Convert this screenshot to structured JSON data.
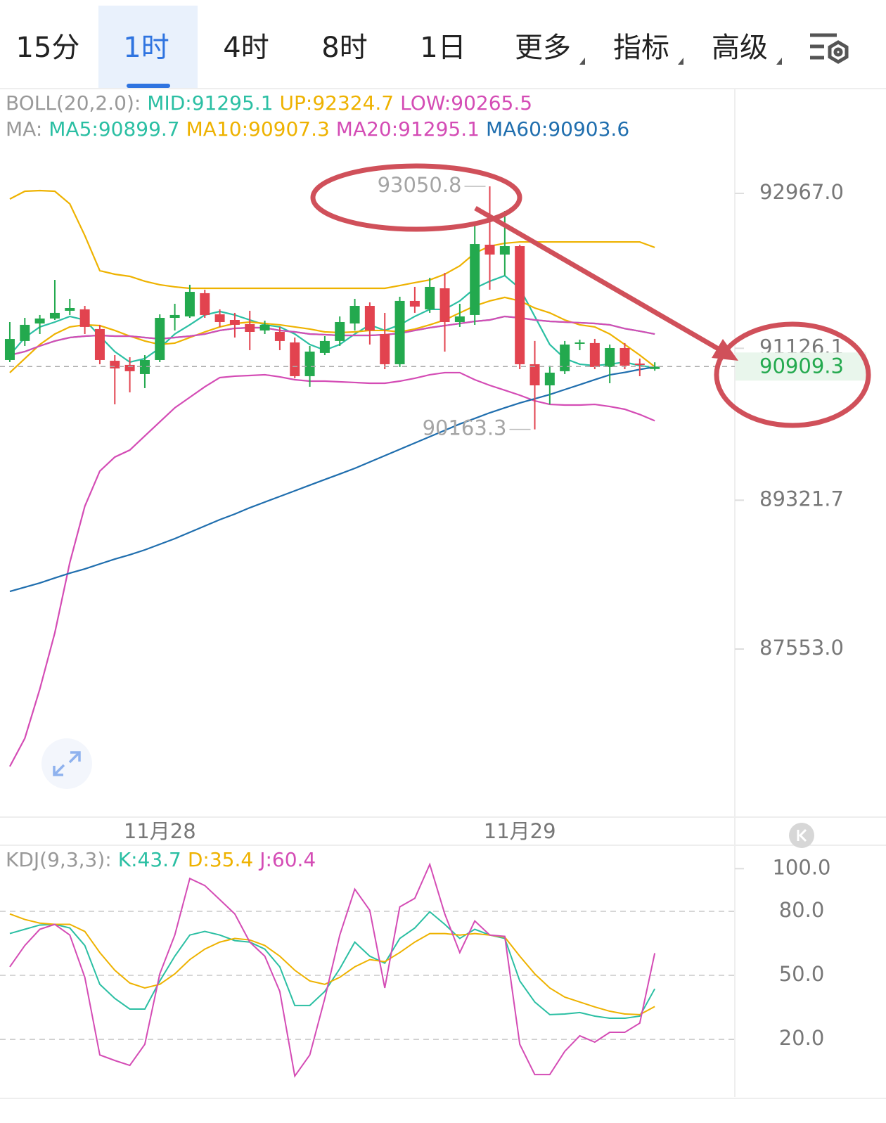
{
  "tabs": {
    "items": [
      "15分",
      "1时",
      "4时",
      "8时",
      "1日",
      "更多",
      "指标",
      "高级"
    ],
    "active": 1
  },
  "chart_data": [
    {
      "type": "candlestick",
      "categories": [
        null,
        null,
        null,
        null,
        null,
        null,
        null,
        null,
        null,
        null,
        "11月28",
        null,
        null,
        null,
        null,
        null,
        null,
        null,
        null,
        null,
        null,
        null,
        null,
        null,
        null,
        null,
        null,
        null,
        null,
        null,
        null,
        null,
        null,
        null,
        "11月29",
        null,
        null,
        null,
        null,
        null,
        null,
        null,
        null,
        null
      ],
      "open": [
        90987,
        91213,
        91421,
        91480,
        91572,
        91589,
        91355,
        90978,
        90929,
        90820,
        90987,
        91488,
        91505,
        91781,
        91530,
        91463,
        91413,
        91338,
        91321,
        91196,
        90795,
        91071,
        91213,
        91421,
        91630,
        91296,
        90937,
        91689,
        91589,
        91839,
        91438,
        91522,
        92357,
        92240,
        92340,
        90937,
        90686,
        90854,
        91188,
        91188,
        90904,
        91129,
        90945,
        90880
      ],
      "high": [
        91438,
        91488,
        91522,
        91939,
        91714,
        91630,
        91405,
        91045,
        91020,
        91045,
        91530,
        91655,
        91881,
        91822,
        91589,
        91547,
        91572,
        91455,
        91380,
        91254,
        91154,
        91271,
        91505,
        91714,
        91672,
        91547,
        91739,
        91856,
        91964,
        92023,
        91655,
        92633,
        93050.8,
        92758,
        92357,
        91213,
        90920,
        91213,
        91229,
        91238,
        91171,
        91188,
        91004,
        90960
      ],
      "low": [
        90962,
        91154,
        91296,
        91463,
        91522,
        91296,
        90937,
        90460,
        90603,
        90653,
        90962,
        91338,
        91488,
        91488,
        91380,
        91254,
        91104,
        91296,
        91104,
        90770,
        90669,
        91045,
        91154,
        91338,
        91171,
        90878,
        90904,
        91547,
        91547,
        91087,
        91380,
        91405,
        91822,
        91990,
        90878,
        90163.3,
        90460,
        90820,
        91104,
        90878,
        90711,
        90878,
        90795,
        90860
      ],
      "close": [
        91237,
        91405,
        91480,
        91547,
        91605,
        91380,
        90987,
        90887,
        90854,
        90987,
        91488,
        91522,
        91797,
        91522,
        91438,
        91405,
        91321,
        91405,
        91213,
        90795,
        91087,
        91213,
        91438,
        91630,
        91338,
        90937,
        91689,
        91622,
        91856,
        91438,
        91505,
        92365,
        92240,
        92340,
        90937,
        90686,
        90837,
        91171,
        91196,
        90904,
        91129,
        90920,
        90929,
        90909.3
      ],
      "up_color": "#23a94e",
      "down_color": "#e2434f",
      "overlay_groups": [
        {
          "label": "BOLL(20,2.0):",
          "series": [
            {
              "name": "MID:",
              "color": "#2bbfa3",
              "values": [
                91045,
                91087,
                91154,
                91213,
                91254,
                91271,
                91279,
                91271,
                91271,
                91254,
                91238,
                91254,
                91271,
                91296,
                91338,
                91363,
                91371,
                91371,
                91338,
                91321,
                91296,
                91288,
                91279,
                91279,
                91279,
                91288,
                91304,
                91338,
                91371,
                91396,
                91421,
                91446,
                91463,
                91505,
                91488,
                91463,
                91446,
                91438,
                91430,
                91421,
                91405,
                91360,
                91330,
                91295.1
              ]
            },
            {
              "name": "UP:",
              "color": "#eeb200",
              "values": [
                92900,
                92992,
                93000,
                92992,
                92842,
                92466,
                92048,
                92006,
                91981,
                91923,
                91881,
                91856,
                91839,
                91839,
                91839,
                91839,
                91839,
                91839,
                91839,
                91839,
                91839,
                91839,
                91839,
                91839,
                91839,
                91839,
                91872,
                91906,
                91939,
                92006,
                92106,
                92257,
                92340,
                92374,
                92390,
                92390,
                92390,
                92390,
                92390,
                92390,
                92390,
                92390,
                92390,
                92324.7
              ]
            },
            {
              "name": "LOW:",
              "color": "#d44cb5",
              "values": [
                86158,
                86492,
                87077,
                87745,
                88581,
                89249,
                89667,
                89834,
                89917,
                90085,
                90252,
                90419,
                90544,
                90669,
                90778,
                90795,
                90803,
                90812,
                90787,
                90753,
                90736,
                90736,
                90728,
                90720,
                90711,
                90711,
                90736,
                90770,
                90812,
                90837,
                90837,
                90753,
                90686,
                90628,
                90569,
                90502,
                90460,
                90452,
                90452,
                90460,
                90435,
                90402,
                90340,
                90265.5
              ]
            }
          ]
        },
        {
          "label": "MA:",
          "series": [
            {
              "name": "MA5:",
              "color": "#2bbfa3",
              "values": [
                91045,
                91254,
                91380,
                91438,
                91505,
                91463,
                91271,
                91087,
                90962,
                91004,
                91129,
                91296,
                91405,
                91522,
                91564,
                91522,
                91463,
                91405,
                91380,
                91296,
                91171,
                91104,
                91171,
                91296,
                91405,
                91338,
                91405,
                91505,
                91589,
                91589,
                91689,
                91839,
                91923,
                91989,
                91839,
                91505,
                91171,
                91004,
                90937,
                90920,
                90937,
                90962,
                90920,
                90899.7
              ]
            },
            {
              "name": "MA10:",
              "color": "#eeb200",
              "values": [
                90837,
                91004,
                91171,
                91296,
                91380,
                91405,
                91396,
                91338,
                91271,
                91213,
                91171,
                91188,
                91254,
                91321,
                91380,
                91421,
                91438,
                91421,
                91405,
                91380,
                91355,
                91321,
                91313,
                91321,
                91338,
                91338,
                91321,
                91355,
                91405,
                91463,
                91547,
                91630,
                91689,
                91731,
                91689,
                91605,
                91547,
                91463,
                91405,
                91380,
                91296,
                91171,
                91045,
                90907.3
              ]
            },
            {
              "name": "MA20:",
              "color": "#d44cb5",
              "values": [
                91045,
                91087,
                91154,
                91213,
                91254,
                91271,
                91279,
                91271,
                91271,
                91254,
                91238,
                91254,
                91271,
                91296,
                91338,
                91363,
                91371,
                91371,
                91338,
                91321,
                91296,
                91288,
                91279,
                91279,
                91279,
                91288,
                91304,
                91338,
                91371,
                91396,
                91421,
                91446,
                91463,
                91505,
                91488,
                91463,
                91446,
                91438,
                91430,
                91421,
                91405,
                91360,
                91330,
                91295.1
              ]
            },
            {
              "name": "MA60:",
              "color": "#1f6eae",
              "values": [
                88238,
                88288,
                88338,
                88397,
                88455,
                88505,
                88564,
                88622,
                88673,
                88731,
                88798,
                88865,
                88940,
                89015,
                89090,
                89157,
                89232,
                89299,
                89366,
                89433,
                89500,
                89567,
                89633,
                89700,
                89775,
                89851,
                89926,
                90001,
                90076,
                90151,
                90227,
                90293,
                90360,
                90419,
                90477,
                90527,
                90577,
                90636,
                90694,
                90753,
                90811,
                90840,
                90875,
                90903.6
              ]
            }
          ]
        }
      ],
      "ylim": [
        85573,
        94220
      ],
      "yticks": [
        {
          "value": 92967,
          "label": "92967.0"
        },
        {
          "value": 91126.1,
          "label": "91126.1"
        },
        {
          "value": 89321.7,
          "label": "89321.7"
        },
        {
          "value": 87553,
          "label": "87553.0"
        }
      ]
    },
    {
      "type": "line",
      "label": "KDJ(9,3,3):",
      "series": [
        {
          "name": "K:",
          "color": "#2bbfa3",
          "values": [
            69.6,
            71.6,
            73.6,
            73.9,
            72.2,
            64.0,
            45.8,
            39.2,
            34.2,
            34.2,
            47.4,
            59.0,
            68.9,
            70.6,
            68.9,
            66.3,
            65.6,
            62.3,
            54.0,
            35.9,
            35.9,
            42.5,
            53.1,
            65.6,
            59.0,
            55.7,
            67.3,
            72.2,
            79.8,
            73.9,
            67.3,
            71.6,
            68.9,
            67.3,
            47.4,
            37.5,
            31.6,
            31.9,
            32.6,
            30.9,
            29.9,
            29.9,
            30.9,
            43.7
          ]
        },
        {
          "name": "D:",
          "color": "#eeb200",
          "values": [
            78.8,
            76.2,
            74.5,
            73.9,
            73.9,
            70.6,
            60.7,
            52.4,
            46.4,
            44.1,
            45.8,
            50.7,
            57.4,
            62.3,
            65.6,
            67.3,
            66.6,
            64.0,
            59.0,
            52.4,
            47.4,
            45.8,
            49.1,
            54.0,
            57.4,
            56.4,
            60.7,
            65.6,
            69.6,
            69.6,
            68.9,
            69.6,
            68.9,
            67.9,
            59.0,
            50.7,
            44.1,
            39.8,
            37.5,
            35.2,
            33.2,
            31.9,
            31.6,
            35.4
          ]
        },
        {
          "name": "J:",
          "color": "#d44cb5",
          "values": [
            54.0,
            64.0,
            71.6,
            73.9,
            68.9,
            49.1,
            12.7,
            10.1,
            7.8,
            17.7,
            50.7,
            68.9,
            95.4,
            92.1,
            85.5,
            78.8,
            65.6,
            59.0,
            42.5,
            2.8,
            12.7,
            39.2,
            68.9,
            90.4,
            80.5,
            44.1,
            82.1,
            86.1,
            102.0,
            78.8,
            60.7,
            75.5,
            68.9,
            68.3,
            17.7,
            3.5,
            3.5,
            14.4,
            21.7,
            18.7,
            23.3,
            23.3,
            27.6,
            60.4
          ]
        }
      ],
      "ylim": [
        -7,
        110
      ],
      "yticks": [
        {
          "value": 100,
          "label": "100.0"
        },
        {
          "value": 80,
          "label": "80.0"
        },
        {
          "value": 50,
          "label": "50.0"
        },
        {
          "value": 20,
          "label": "20.0"
        }
      ],
      "grid": true
    }
  ]
}
